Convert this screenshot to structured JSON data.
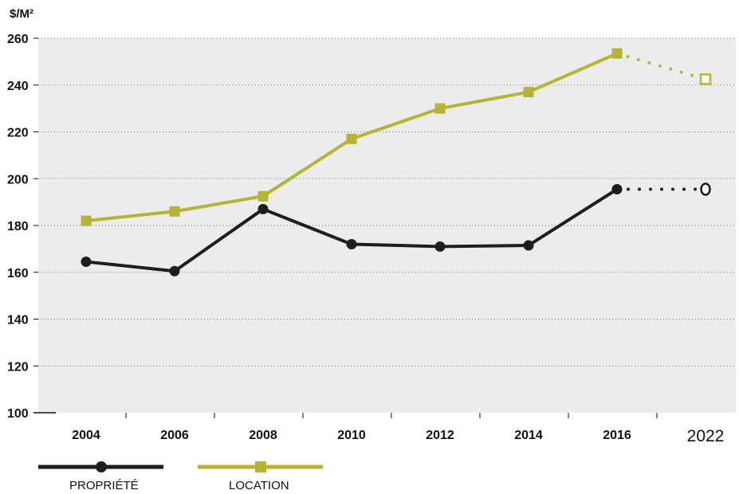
{
  "chart_data": {
    "type": "line",
    "y_unit": "$/M²",
    "x": [
      "2004",
      "2006",
      "2008",
      "2010",
      "2012",
      "2014",
      "2016",
      "2022"
    ],
    "ylim": [
      100,
      260
    ],
    "yticks": [
      "100",
      "120",
      "140",
      "160",
      "180",
      "200",
      "220",
      "240",
      "260"
    ],
    "grid": "dotted",
    "legend_position": "bottom-left",
    "series": [
      {
        "name": "PROPRIÉTÉ",
        "color": "#1e1e1e",
        "marker": "circle",
        "values": [
          164.5,
          160.5,
          187,
          172,
          171,
          171.5,
          195.5,
          195.5
        ],
        "projected_from_index": 6
      },
      {
        "name": "LOCATION",
        "color": "#b5b533",
        "marker": "square",
        "values": [
          182,
          186,
          192.5,
          217,
          230,
          237,
          253.5,
          242.5
        ],
        "projected_from_index": 6
      }
    ],
    "highlight_category": {
      "label": "2022",
      "color": "#b5b533"
    }
  }
}
